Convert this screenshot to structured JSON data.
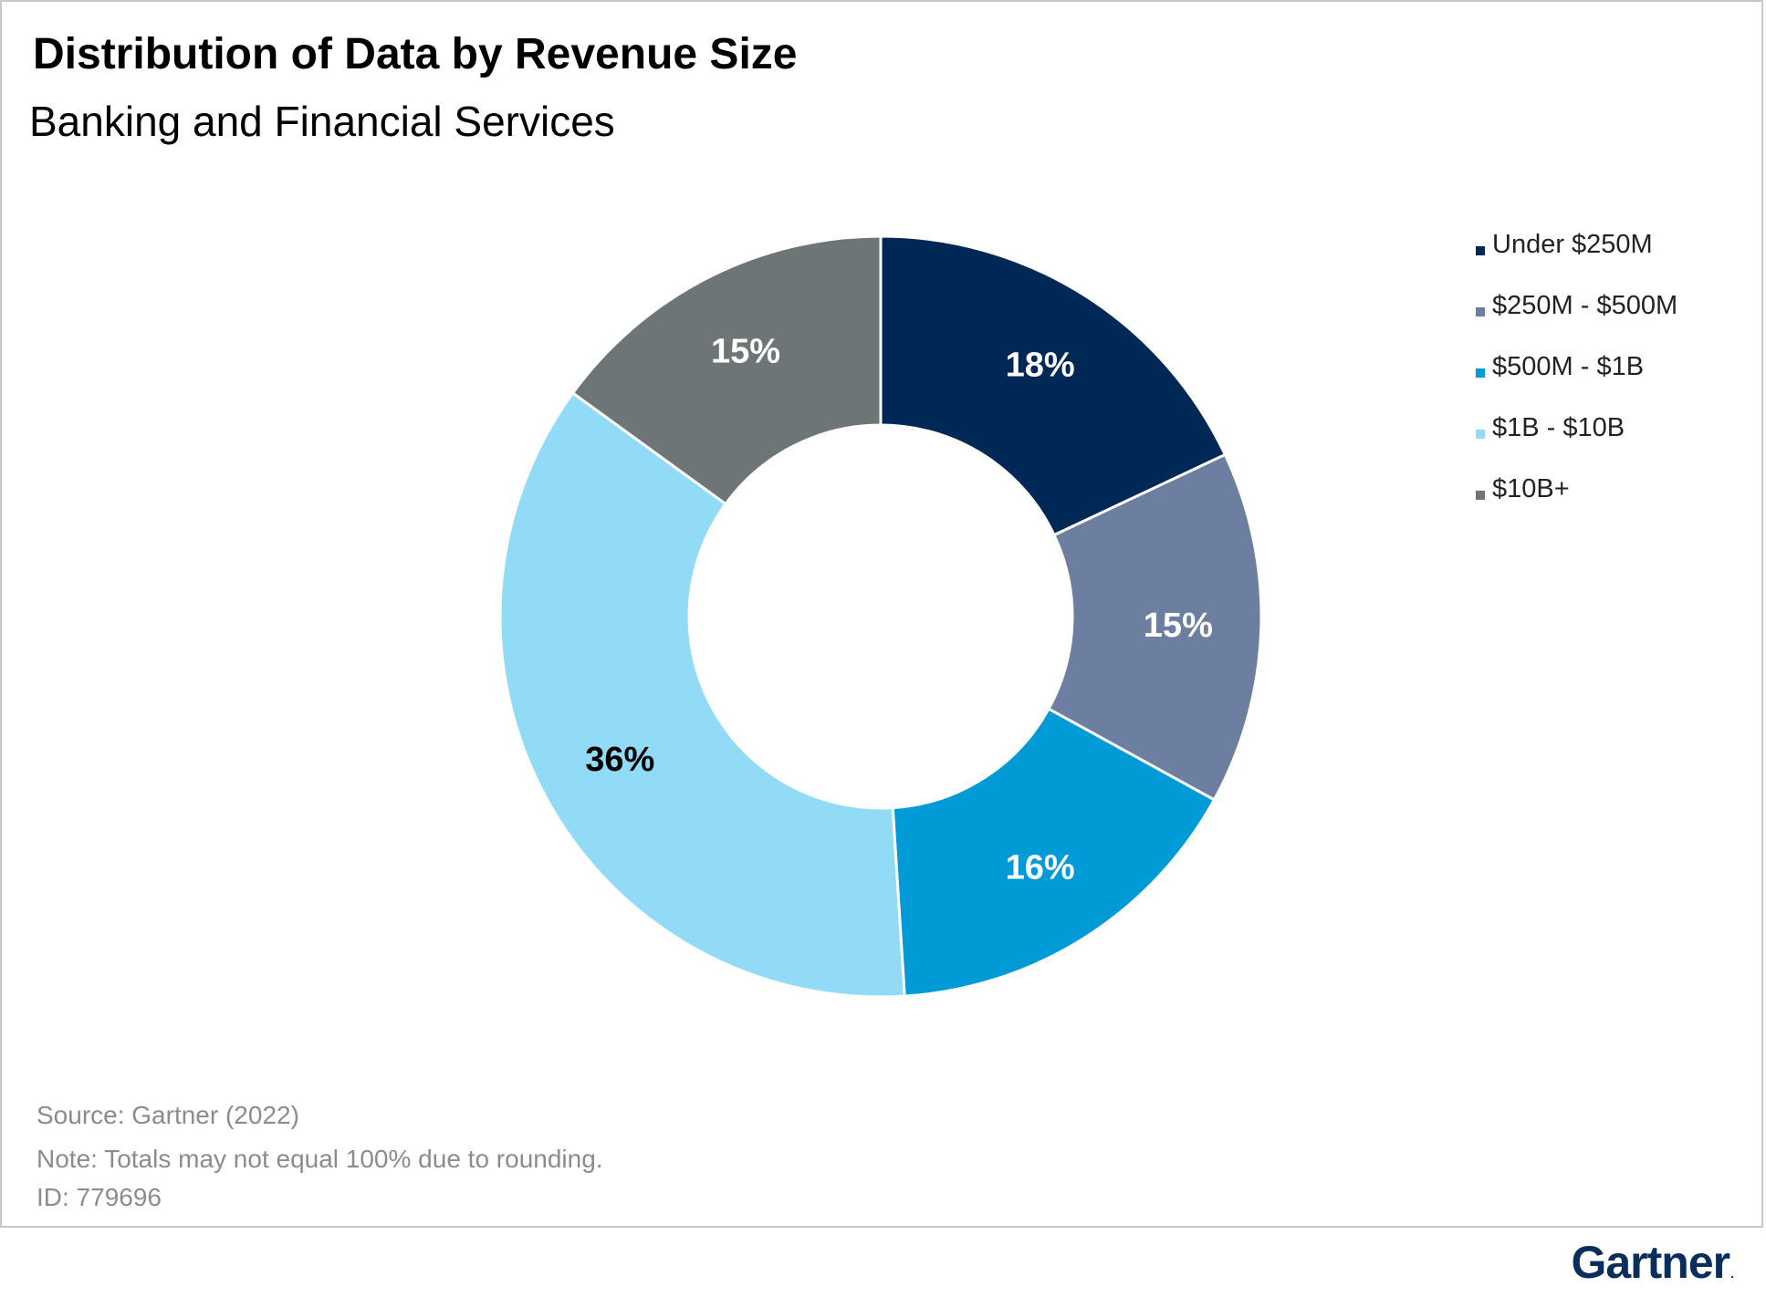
{
  "header": {
    "title": "Distribution of Data by Revenue Size",
    "subtitle": "Banking and Financial Services"
  },
  "chart_data": {
    "type": "pie",
    "variant": "donut",
    "title": "Distribution of Data by Revenue Size",
    "subtitle": "Banking and Financial Services",
    "categories": [
      "Under $250M",
      "$250M - $500M",
      "$500M - $1B",
      "$1B - $10B",
      "$10B+"
    ],
    "values": [
      18,
      15,
      16,
      36,
      15
    ],
    "labels": [
      "18%",
      "15%",
      "16%",
      "36%",
      "15%"
    ],
    "colors": [
      "#002856",
      "#6c7fa1",
      "#009bd7",
      "#92dbf7",
      "#6e7576"
    ],
    "label_colors": [
      "#ffffff",
      "#ffffff",
      "#ffffff",
      "#000000",
      "#ffffff"
    ],
    "legend_position": "right"
  },
  "footer": {
    "source": "Source: Gartner (2022)",
    "note": "Note: Totals may not equal 100% due to rounding.",
    "id": "ID: 779696"
  },
  "brand": {
    "name": "Gartner",
    "mark": "."
  }
}
